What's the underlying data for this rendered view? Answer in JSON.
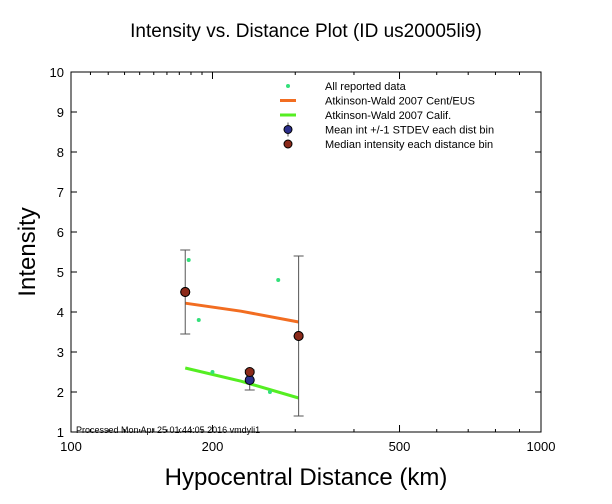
{
  "chart_data": {
    "type": "scatter",
    "title": "Intensity vs. Distance Plot (ID us20005li9)",
    "xlabel": "Hypocentral Distance (km)",
    "ylabel": "Intensity",
    "xscale": "log",
    "xlim": [
      100,
      1000
    ],
    "ylim": [
      1,
      10
    ],
    "xticks": [
      100,
      200,
      500,
      1000
    ],
    "yticks": [
      1,
      2,
      3,
      4,
      5,
      6,
      7,
      8,
      9,
      10
    ],
    "grid": false,
    "legend_position": "top-right",
    "footnote": "Processed Mon Apr 25 01:44:05 2016 vmdyli1",
    "series": [
      {
        "name": "All reported data",
        "kind": "points",
        "color": "#33e07a",
        "x": [
          178,
          187,
          200,
          265,
          276
        ],
        "y": [
          5.3,
          3.8,
          2.5,
          2.0,
          4.8
        ]
      },
      {
        "name": "Atkinson-Wald 2007 Cent/EUS",
        "kind": "line",
        "color": "#f26d21",
        "x": [
          175,
          230,
          305
        ],
        "y": [
          4.22,
          4.02,
          3.75
        ]
      },
      {
        "name": "Atkinson-Wald 2007 Calif.",
        "kind": "line",
        "color": "#55ee22",
        "x": [
          175,
          230,
          305
        ],
        "y": [
          2.6,
          2.27,
          1.85
        ]
      },
      {
        "name": "Mean int +/-1 STDEV each dist bin",
        "kind": "errorbar",
        "color": "#2b2f8c",
        "x": [
          175,
          240,
          305
        ],
        "y": [
          4.5,
          2.3,
          3.4
        ],
        "err": [
          1.05,
          0.25,
          2.0
        ]
      },
      {
        "name": "Median intensity each distance bin",
        "kind": "points",
        "color": "#8b2a1a",
        "x": [
          175,
          240,
          305
        ],
        "y": [
          4.5,
          2.5,
          3.4
        ]
      }
    ]
  }
}
